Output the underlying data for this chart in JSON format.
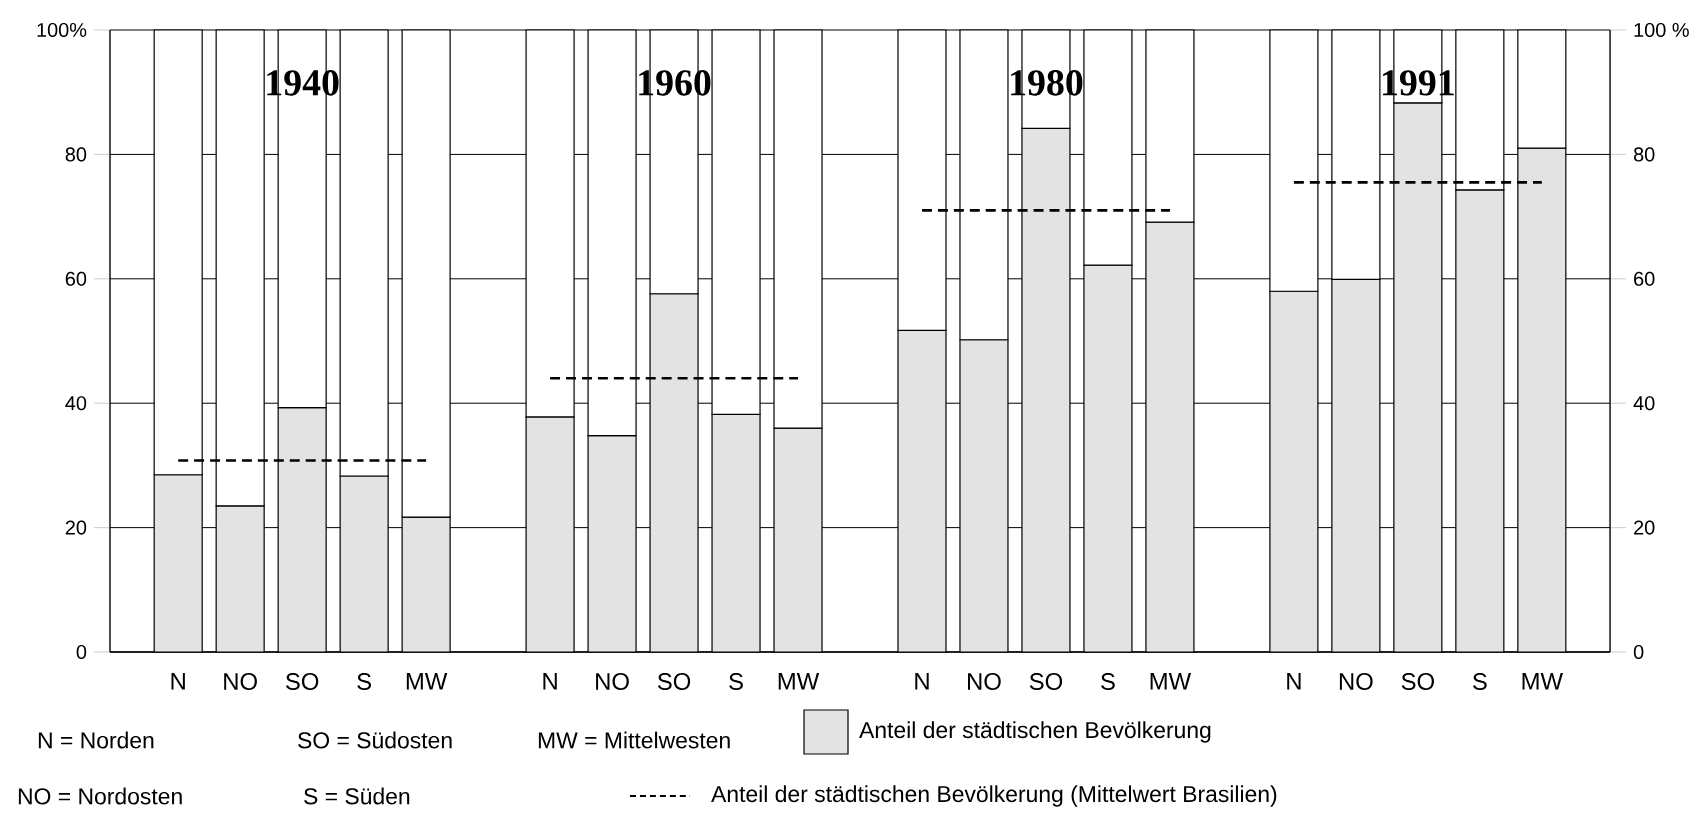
{
  "chart_data": {
    "type": "bar",
    "stacked": true,
    "categories": [
      "N",
      "NO",
      "SO",
      "S",
      "MW",
      null,
      "N",
      "NO",
      "SO",
      "S",
      "MW",
      null,
      "N",
      "NO",
      "SO",
      "S",
      "MW",
      null,
      "N",
      "NO",
      "SO",
      "S",
      "MW"
    ],
    "series": [
      {
        "name": "Anteil der städtischen Bevölkerung",
        "color": "#e3e3e3",
        "values": [
          28.5,
          23.5,
          39.3,
          28.3,
          21.7,
          null,
          37.8,
          34.8,
          57.6,
          38.2,
          36.0,
          null,
          51.7,
          50.2,
          84.2,
          62.2,
          69.1,
          null,
          58.0,
          59.9,
          88.3,
          74.3,
          81.0
        ]
      },
      {
        "color": "#ffffff",
        "values": [
          71.5,
          76.5,
          60.7,
          71.7,
          78.3,
          null,
          62.2,
          65.2,
          42.4,
          61.8,
          64.0,
          null,
          48.3,
          49.8,
          15.8,
          37.8,
          30.9,
          null,
          42.0,
          40.1,
          11.7,
          25.7,
          19.0
        ]
      },
      {
        "name": "Anteil der städtischen Bevölkerung (Mittelwert Brasilien)",
        "type": "line",
        "line_style": "dashed",
        "color": "#000000",
        "values": [
          30.8,
          30.8,
          30.8,
          30.8,
          30.8,
          null,
          44.0,
          44.0,
          44.0,
          44.0,
          44.0,
          null,
          71.0,
          71.0,
          71.0,
          71.0,
          71.0,
          null,
          75.5,
          75.5,
          75.5,
          75.5,
          75.5
        ]
      }
    ],
    "ylim": [
      0,
      100
    ],
    "yticks": [
      0,
      20,
      40,
      60,
      80,
      {
        "value": 100,
        "label": "100%"
      }
    ],
    "y2lim": [
      0,
      100
    ],
    "y2ticks": [
      0,
      20,
      40,
      60,
      80,
      {
        "value": 100,
        "label": "100 %"
      }
    ],
    "grid": "y",
    "legend": "bottom",
    "annotations": [
      "1940",
      "1960",
      "1980",
      "1991",
      "N = Norden",
      "SO = Südosten",
      "MW = Mittelwesten",
      "NO = Nordosten",
      "S = Süden"
    ]
  }
}
